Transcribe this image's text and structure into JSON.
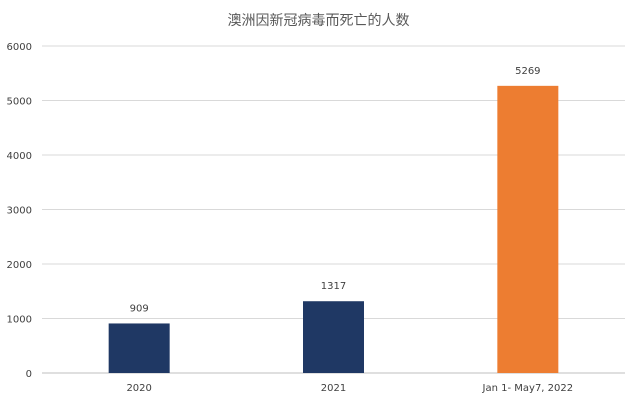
{
  "chart_data": {
    "type": "bar",
    "title": "澳洲因新冠病毒而死亡的人数",
    "categories": [
      "2020",
      "2021",
      "Jan 1- May7, 2022"
    ],
    "values": [
      909,
      1317,
      5269
    ],
    "data_labels": [
      "909",
      "1317",
      "5269"
    ],
    "bar_colors": [
      "#1f3864",
      "#1f3864",
      "#ed7d31"
    ],
    "ylim": [
      0,
      6000
    ],
    "yticks": [
      "0",
      "1000",
      "2000",
      "3000",
      "4000",
      "5000",
      "6000"
    ],
    "grid": true,
    "legend": "none"
  }
}
